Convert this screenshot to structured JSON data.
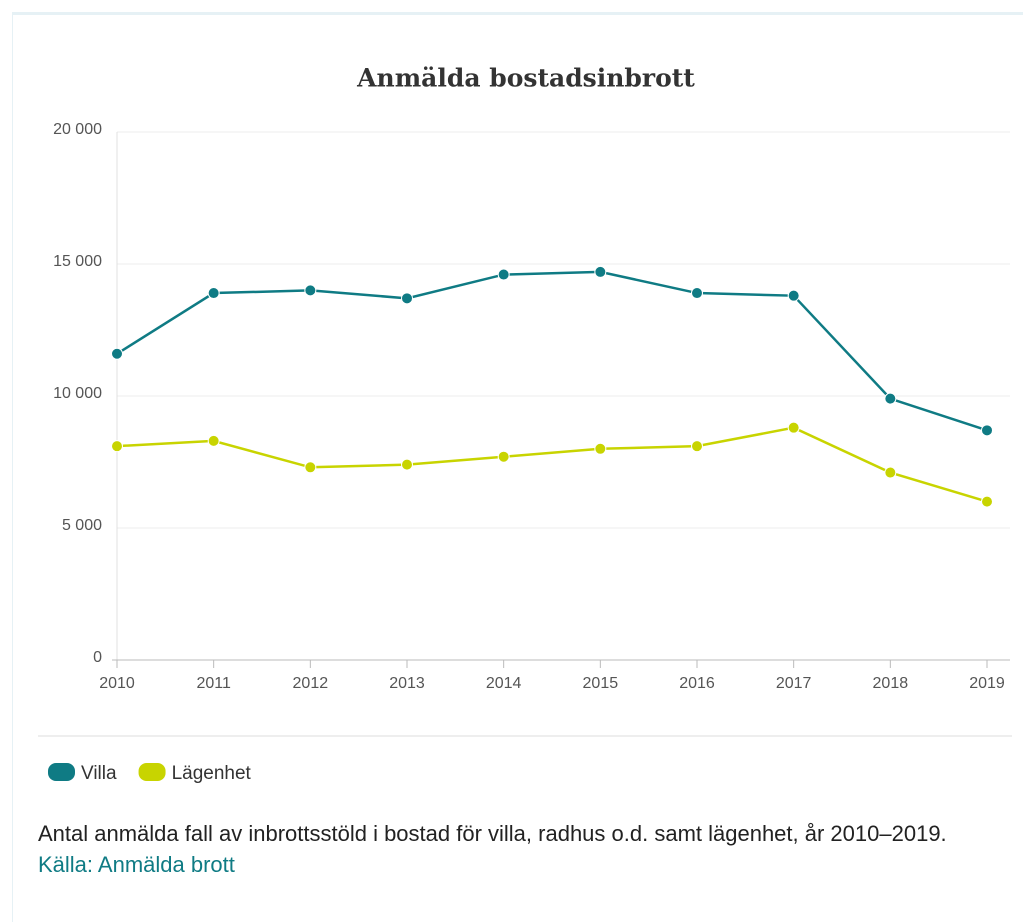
{
  "chart_data": {
    "type": "line",
    "title": "Anmälda bostadsinbrott",
    "categories": [
      "2010",
      "2011",
      "2012",
      "2013",
      "2014",
      "2015",
      "2016",
      "2017",
      "2018",
      "2019"
    ],
    "series": [
      {
        "name": "Villa",
        "color": "#0f7b84",
        "values": [
          11600,
          13900,
          14000,
          13700,
          14600,
          14700,
          13900,
          13800,
          9900,
          8700
        ]
      },
      {
        "name": "Lägenhet",
        "color": "#c8d400",
        "values": [
          8100,
          8300,
          7300,
          7400,
          7700,
          8000,
          8100,
          8800,
          7100,
          6000
        ]
      }
    ],
    "ylim": [
      0,
      20000
    ],
    "yticks": [
      0,
      {
        "value": 5000,
        "label": "5 000"
      },
      {
        "value": 10000,
        "label": "10 000"
      },
      {
        "value": 15000,
        "label": "15 000"
      },
      {
        "value": 20000,
        "label": "20 000"
      }
    ],
    "grid": true
  },
  "caption": "Antal anmälda fall av inbrottsstöld i bostad för villa, radhus o.d. samt lägenhet, år 2010–2019.",
  "source_link": "Källa: Anmälda brott"
}
